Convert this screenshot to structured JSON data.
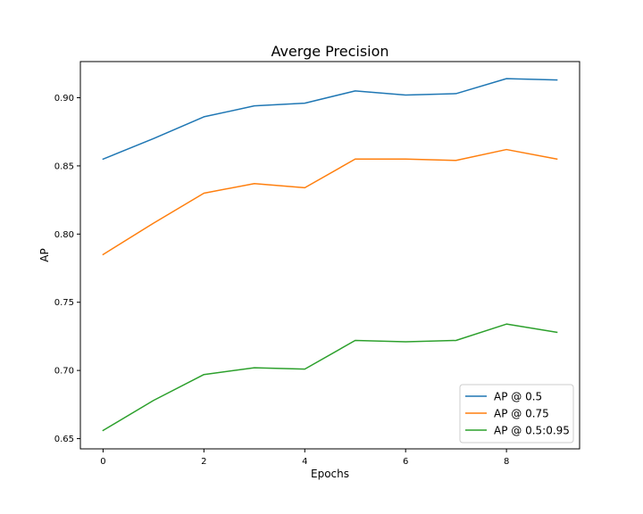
{
  "chart_data": {
    "type": "line",
    "title": "Averge Precision",
    "xlabel": "Epochs",
    "ylabel": "AP",
    "x": [
      0,
      1,
      2,
      3,
      4,
      5,
      6,
      7,
      8,
      9
    ],
    "xlim": [
      -0.45,
      9.45
    ],
    "ylim": [
      0.6425,
      0.9265
    ],
    "xticks": [
      0,
      2,
      4,
      6,
      8
    ],
    "xtick_labels": [
      "0",
      "2",
      "4",
      "6",
      "8"
    ],
    "yticks": [
      0.65,
      0.7,
      0.75,
      0.8,
      0.85,
      0.9
    ],
    "ytick_labels": [
      "0.65",
      "0.70",
      "0.75",
      "0.80",
      "0.85",
      "0.90"
    ],
    "grid": false,
    "legend_position": "lower-right",
    "series": [
      {
        "name": "AP @ 0.5",
        "color": "#1f77b4",
        "values": [
          0.855,
          0.87,
          0.886,
          0.894,
          0.896,
          0.905,
          0.902,
          0.903,
          0.914,
          0.913
        ]
      },
      {
        "name": "AP @ 0.75",
        "color": "#ff7f0e",
        "values": [
          0.785,
          0.808,
          0.83,
          0.837,
          0.834,
          0.855,
          0.855,
          0.854,
          0.862,
          0.855
        ]
      },
      {
        "name": "AP @ 0.5:0.95",
        "color": "#2ca02c",
        "values": [
          0.656,
          0.678,
          0.697,
          0.702,
          0.701,
          0.722,
          0.721,
          0.722,
          0.734,
          0.728
        ]
      }
    ]
  }
}
